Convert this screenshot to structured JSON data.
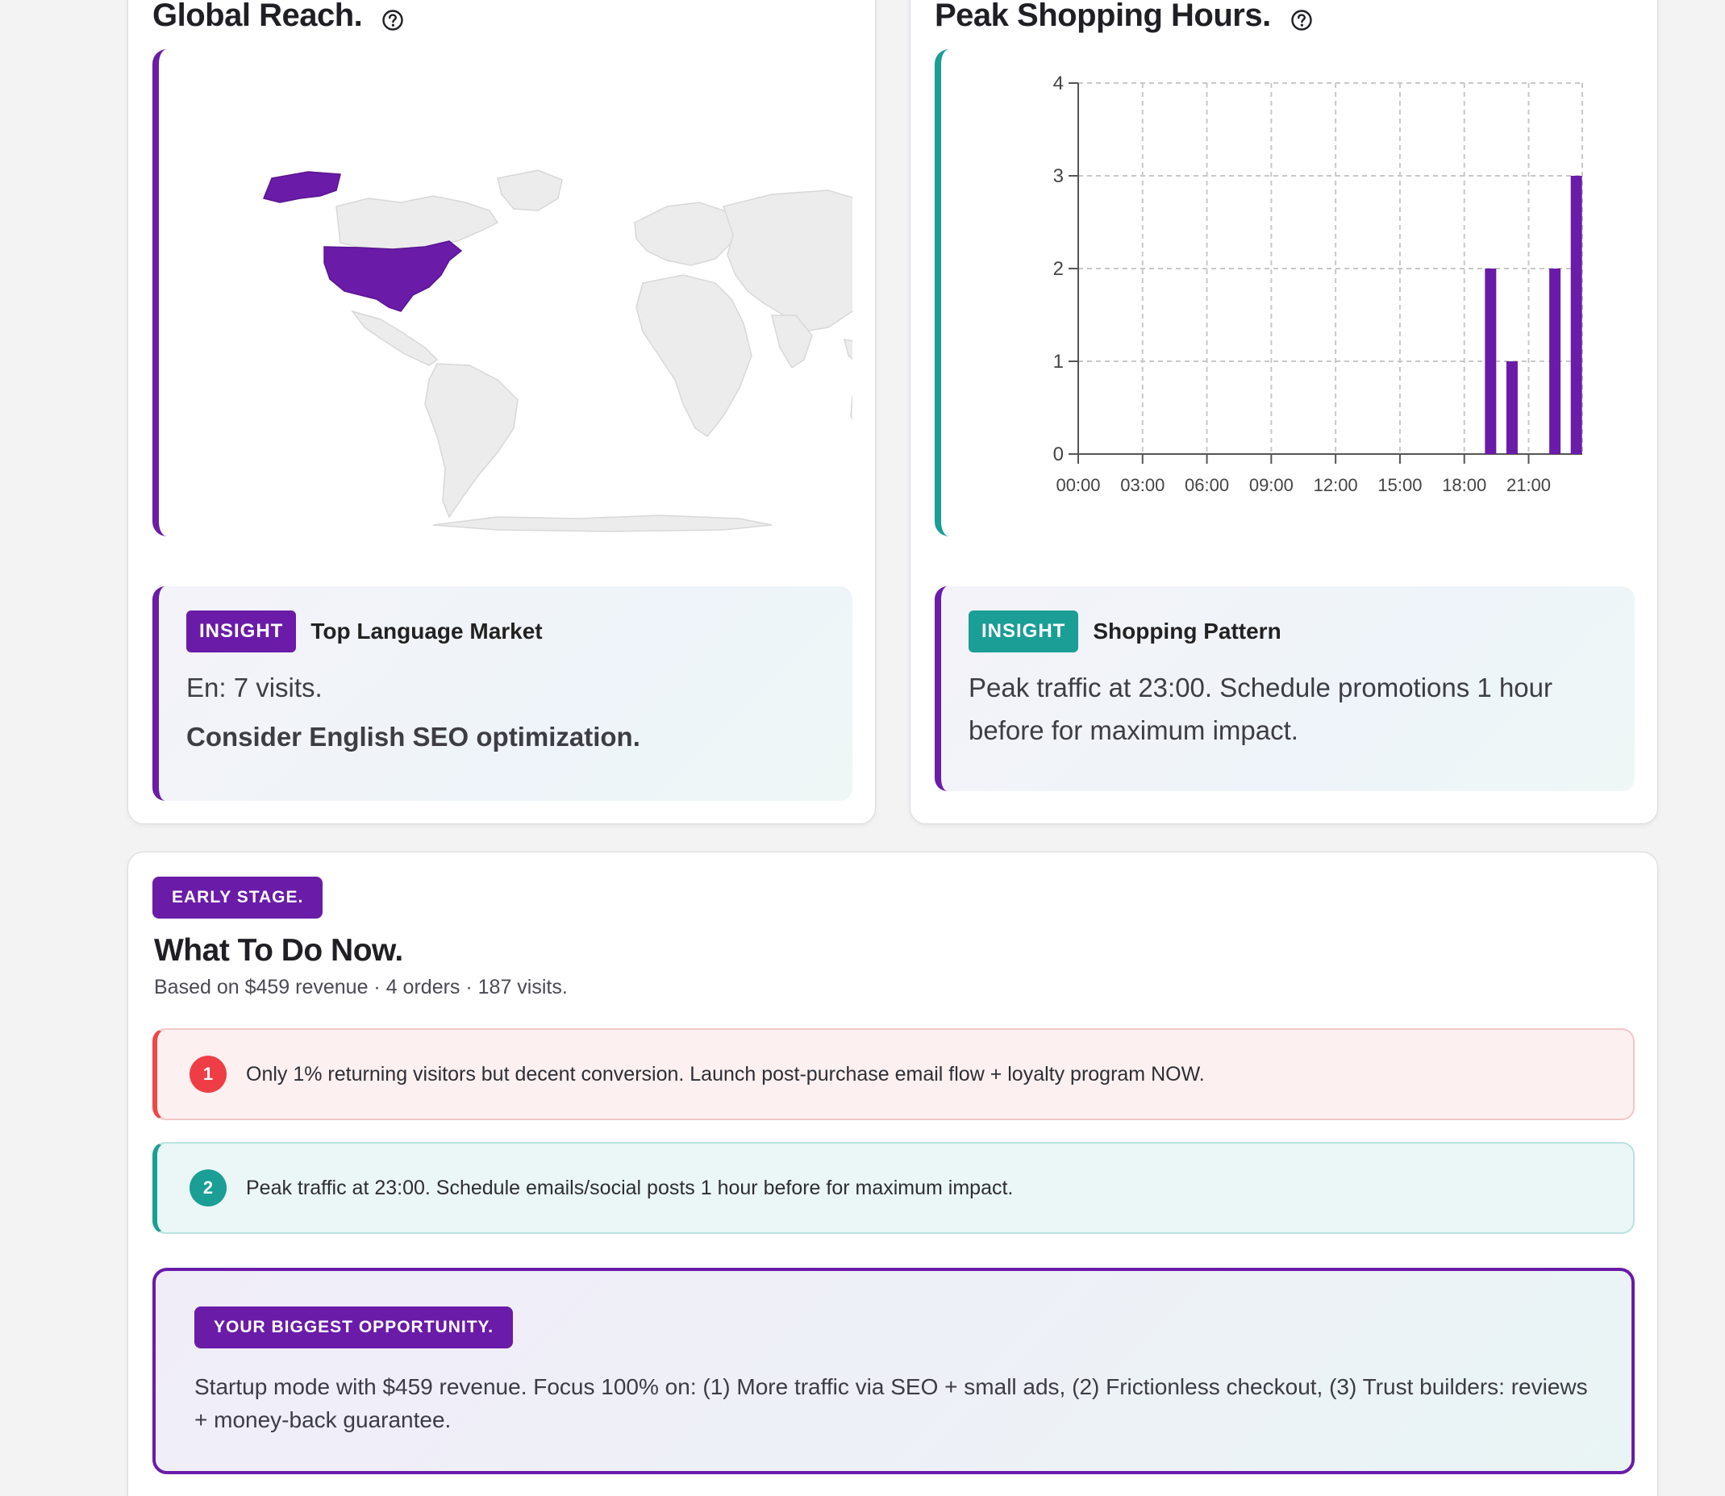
{
  "global_reach": {
    "title": "Global Reach.",
    "help_icon": "question-circle-icon",
    "map_highlight_color": "#6a1ba8",
    "map_base_color": "#ececec",
    "highlighted_country": "United States",
    "insight": {
      "badge": "INSIGHT",
      "title": "Top Language Market",
      "line1": "En: 7 visits.",
      "line2": "Consider English SEO optimization."
    }
  },
  "peak_hours": {
    "title": "Peak Shopping Hours.",
    "help_icon": "question-circle-icon",
    "insight": {
      "badge": "INSIGHT",
      "title": "Shopping Pattern",
      "text": "Peak traffic at 23:00. Schedule promotions 1 hour before for maximum impact."
    }
  },
  "chart_data": {
    "type": "bar",
    "title": "",
    "xlabel": "",
    "ylabel": "",
    "x_ticks": [
      "00:00",
      "03:00",
      "06:00",
      "09:00",
      "12:00",
      "15:00",
      "18:00",
      "21:00"
    ],
    "y_ticks": [
      0,
      1,
      2,
      3,
      4
    ],
    "ylim": [
      0,
      4
    ],
    "xlim": [
      0,
      23.5
    ],
    "grid": true,
    "bar_color": "#6a1ba8",
    "x": [
      19,
      20,
      22,
      23
    ],
    "values": [
      2,
      1,
      2,
      3
    ]
  },
  "todo": {
    "badge": "EARLY STAGE.",
    "title": "What To Do Now.",
    "subtitle": "Based on $459 revenue · 4 orders · 187 visits.",
    "actions": [
      {
        "number": "1",
        "text": "Only 1% returning visitors but decent conversion. Launch post-purchase email flow + loyalty program NOW.",
        "color": "#ef3d46"
      },
      {
        "number": "2",
        "text": "Peak traffic at 23:00. Schedule emails/social posts 1 hour before for maximum impact.",
        "color": "#1a9e96"
      }
    ],
    "opportunity": {
      "badge": "YOUR BIGGEST OPPORTUNITY.",
      "text": "Startup mode with $459 revenue. Focus 100% on: (1) More traffic via SEO + small ads, (2) Frictionless checkout, (3) Trust builders: reviews + money-back guarantee."
    }
  }
}
